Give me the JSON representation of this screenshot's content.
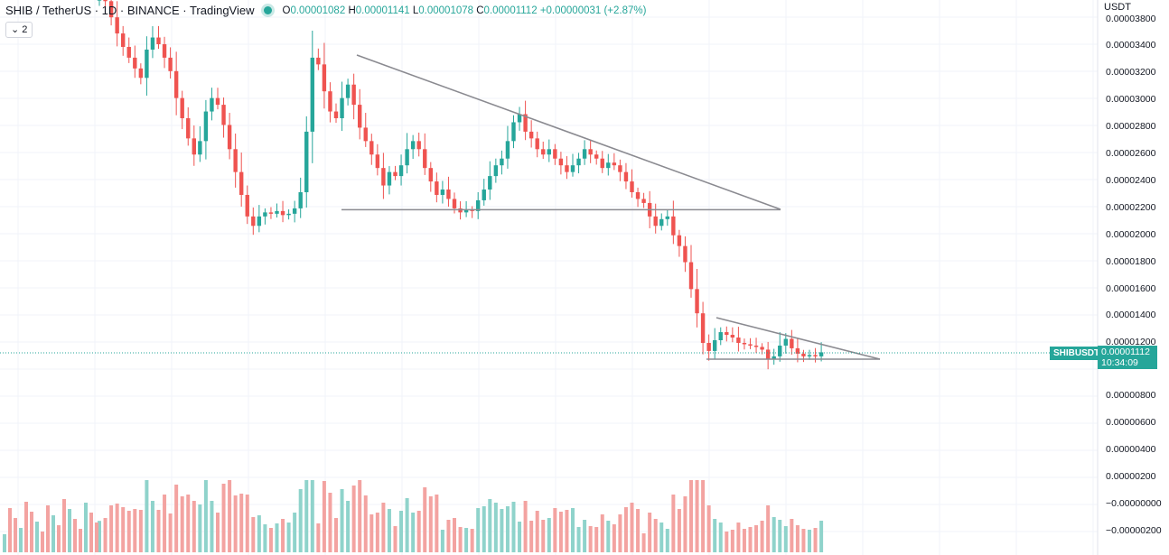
{
  "header": {
    "symbol": "SHIB / TetherUS · 1D · BINANCE · TradingView",
    "ohlc": {
      "o_label": "O",
      "o_value": "0.00001082",
      "h_label": "H",
      "h_value": "0.00001141",
      "l_label": "L",
      "l_value": "0.00001078",
      "c_label": "C",
      "c_value": "0.00001112",
      "change": "+0.00000031 (+2.87%)"
    },
    "indicator_badge": "⌄ 2"
  },
  "price_axis": {
    "unit": "USDT",
    "labels": [
      "0.00003800",
      "0.00003400",
      "0.00003200",
      "0.00003000",
      "0.00002800",
      "0.00002600",
      "0.00002400",
      "0.00002200",
      "0.00002000",
      "0.00001800",
      "0.00001600",
      "0.00001400",
      "0.00001200",
      "0.00000800",
      "0.00000600",
      "0.00000400",
      "0.00000200",
      "−0.00000000",
      "−0.00000200"
    ]
  },
  "last_price": {
    "symbol_tag": "SHIBUSDT",
    "value": "0.00001112",
    "countdown": "10:34:09"
  },
  "colors": {
    "up": "#26a69a",
    "down": "#ef5350",
    "vol_up": "#8fd3cb",
    "vol_down": "#f3a3a1",
    "trendline": "#8a8a90",
    "grid": "#f0f3fa"
  },
  "chart_data": {
    "type": "candlestick",
    "price_range": [
      0.0,
      3.85e-05
    ],
    "support_1": 2.17e-05,
    "support_2": 1.07e-05,
    "closes": [
      3.8e-05,
      3.72e-05,
      3.6e-05,
      3.48e-05,
      3.38e-05,
      3.3e-05,
      3.22e-05,
      3.15e-05,
      3.36e-05,
      3.45e-05,
      3.4e-05,
      3.3e-05,
      3.2e-05,
      3e-05,
      2.85e-05,
      2.7e-05,
      2.58e-05,
      2.68e-05,
      2.9e-05,
      3e-05,
      2.95e-05,
      2.8e-05,
      2.62e-05,
      2.45e-05,
      2.28e-05,
      2.12e-05,
      2.05e-05,
      2.12e-05,
      2.15e-05,
      2.14e-05,
      2.16e-05,
      2.13e-05,
      2.14e-05,
      2.18e-05,
      2.3e-05,
      2.75e-05,
      3.3e-05,
      3.25e-05,
      3.05e-05,
      2.9e-05,
      2.85e-05,
      3e-05,
      3.1e-05,
      2.95e-05,
      2.78e-05,
      2.68e-05,
      2.58e-05,
      2.48e-05,
      2.35e-05,
      2.45e-05,
      2.42e-05,
      2.5e-05,
      2.62e-05,
      2.68e-05,
      2.62e-05,
      2.48e-05,
      2.38e-05,
      2.28e-05,
      2.32e-05,
      2.25e-05,
      2.18e-05,
      2.15e-05,
      2.17e-05,
      2.16e-05,
      2.24e-05,
      2.32e-05,
      2.42e-05,
      2.5e-05,
      2.55e-05,
      2.68e-05,
      2.82e-05,
      2.88e-05,
      2.75e-05,
      2.7e-05,
      2.62e-05,
      2.58e-05,
      2.62e-05,
      2.55e-05,
      2.5e-05,
      2.45e-05,
      2.5e-05,
      2.55e-05,
      2.62e-05,
      2.58e-05,
      2.55e-05,
      2.48e-05,
      2.52e-05,
      2.5e-05,
      2.45e-05,
      2.38e-05,
      2.3e-05,
      2.25e-05,
      2.22e-05,
      2.12e-05,
      2.05e-05,
      2.1e-05,
      2.12e-05,
      1.98e-05,
      1.9e-05,
      1.78e-05,
      1.58e-05,
      1.4e-05,
      1.18e-05,
      1.12e-05,
      1.2e-05,
      1.26e-05,
      1.24e-05,
      1.22e-05,
      1.18e-05,
      1.17e-05,
      1.16e-05,
      1.15e-05,
      1.13e-05,
      1.06e-05,
      1.08e-05,
      1.16e-05,
      1.21e-05,
      1.14e-05,
      1.1e-05,
      1.08e-05,
      1.09e-05,
      1.08e-05,
      1.11e-05
    ]
  }
}
